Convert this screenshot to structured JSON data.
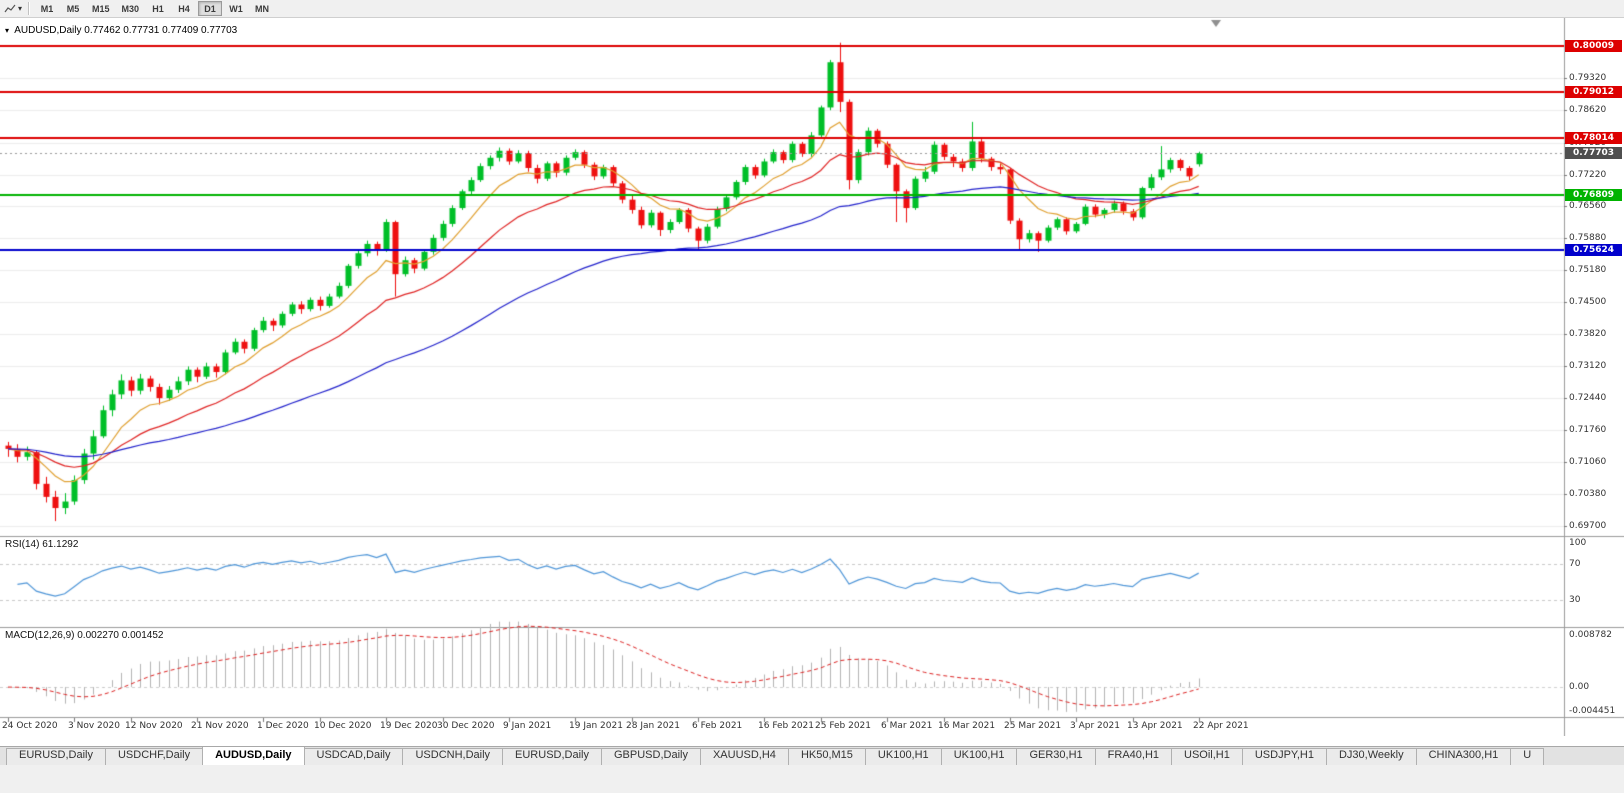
{
  "toolbar": {
    "timeframes": [
      "M1",
      "M5",
      "M15",
      "M30",
      "H1",
      "H4",
      "D1",
      "W1",
      "MN"
    ],
    "active_timeframe": "D1"
  },
  "chart": {
    "title": "AUDUSD,Daily",
    "ohlc_text": "0.77462 0.77731 0.77409 0.77703"
  },
  "chart_data": {
    "type": "candlestick",
    "symbol": "AUDUSD",
    "timeframe": "Daily",
    "bull_color": "#00bf28",
    "bear_color": "#ee1010",
    "ohlc": [
      [
        0.7142,
        0.715,
        0.7118,
        0.7135
      ],
      [
        0.7135,
        0.7145,
        0.7106,
        0.7118
      ],
      [
        0.7118,
        0.714,
        0.711,
        0.7128
      ],
      [
        0.7128,
        0.7132,
        0.7048,
        0.706
      ],
      [
        0.706,
        0.7075,
        0.702,
        0.7032
      ],
      [
        0.7032,
        0.7045,
        0.698,
        0.7008
      ],
      [
        0.7008,
        0.704,
        0.6995,
        0.7022
      ],
      [
        0.7022,
        0.7078,
        0.7015,
        0.7068
      ],
      [
        0.7068,
        0.7135,
        0.706,
        0.7125
      ],
      [
        0.7125,
        0.7175,
        0.7112,
        0.7162
      ],
      [
        0.7162,
        0.7228,
        0.7158,
        0.7218
      ],
      [
        0.7218,
        0.7262,
        0.7205,
        0.7252
      ],
      [
        0.7252,
        0.7295,
        0.7242,
        0.7282
      ],
      [
        0.7282,
        0.729,
        0.7248,
        0.726
      ],
      [
        0.726,
        0.7296,
        0.7252,
        0.7286
      ],
      [
        0.7286,
        0.7292,
        0.7258,
        0.7268
      ],
      [
        0.7268,
        0.7275,
        0.723,
        0.7244
      ],
      [
        0.7244,
        0.727,
        0.7238,
        0.7262
      ],
      [
        0.7262,
        0.729,
        0.7255,
        0.728
      ],
      [
        0.728,
        0.7312,
        0.7272,
        0.7305
      ],
      [
        0.7305,
        0.731,
        0.7278,
        0.729
      ],
      [
        0.729,
        0.732,
        0.7285,
        0.7312
      ],
      [
        0.7312,
        0.7318,
        0.7288,
        0.73
      ],
      [
        0.73,
        0.7348,
        0.7295,
        0.7342
      ],
      [
        0.7342,
        0.7372,
        0.7338,
        0.7365
      ],
      [
        0.7365,
        0.737,
        0.734,
        0.735
      ],
      [
        0.735,
        0.7395,
        0.7345,
        0.739
      ],
      [
        0.739,
        0.7418,
        0.7385,
        0.741
      ],
      [
        0.741,
        0.7415,
        0.7388,
        0.74
      ],
      [
        0.74,
        0.743,
        0.7395,
        0.7425
      ],
      [
        0.7425,
        0.745,
        0.742,
        0.7445
      ],
      [
        0.7445,
        0.7452,
        0.7425,
        0.7435
      ],
      [
        0.7435,
        0.746,
        0.743,
        0.7455
      ],
      [
        0.7455,
        0.7462,
        0.7432,
        0.7442
      ],
      [
        0.7442,
        0.7468,
        0.7438,
        0.7462
      ],
      [
        0.7462,
        0.7492,
        0.7458,
        0.7485
      ],
      [
        0.7485,
        0.7532,
        0.748,
        0.7528
      ],
      [
        0.7528,
        0.756,
        0.7522,
        0.7555
      ],
      [
        0.7555,
        0.7582,
        0.7548,
        0.7575
      ],
      [
        0.7575,
        0.758,
        0.755,
        0.7562
      ],
      [
        0.7562,
        0.7628,
        0.7558,
        0.7622
      ],
      [
        0.7622,
        0.7625,
        0.7462,
        0.751
      ],
      [
        0.751,
        0.7548,
        0.7505,
        0.754
      ],
      [
        0.754,
        0.7545,
        0.7512,
        0.7522
      ],
      [
        0.7522,
        0.7562,
        0.7518,
        0.7558
      ],
      [
        0.7558,
        0.7595,
        0.7552,
        0.7588
      ],
      [
        0.7588,
        0.7625,
        0.7582,
        0.7618
      ],
      [
        0.7618,
        0.7658,
        0.7612,
        0.7652
      ],
      [
        0.7652,
        0.7692,
        0.7648,
        0.7688
      ],
      [
        0.7688,
        0.7718,
        0.7682,
        0.7712
      ],
      [
        0.7712,
        0.7748,
        0.7708,
        0.7742
      ],
      [
        0.7742,
        0.7765,
        0.7735,
        0.776
      ],
      [
        0.776,
        0.7782,
        0.7752,
        0.7775
      ],
      [
        0.7775,
        0.778,
        0.7745,
        0.7752
      ],
      [
        0.7752,
        0.7776,
        0.7748,
        0.777
      ],
      [
        0.777,
        0.7775,
        0.773,
        0.7738
      ],
      [
        0.7738,
        0.7745,
        0.7705,
        0.7715
      ],
      [
        0.7715,
        0.7752,
        0.771,
        0.7748
      ],
      [
        0.7748,
        0.7752,
        0.7718,
        0.7728
      ],
      [
        0.7728,
        0.7765,
        0.7722,
        0.776
      ],
      [
        0.776,
        0.7778,
        0.7755,
        0.7772
      ],
      [
        0.7772,
        0.7776,
        0.7738,
        0.7745
      ],
      [
        0.7745,
        0.775,
        0.7712,
        0.772
      ],
      [
        0.772,
        0.7745,
        0.7715,
        0.774
      ],
      [
        0.774,
        0.7744,
        0.7698,
        0.7705
      ],
      [
        0.7705,
        0.771,
        0.7662,
        0.767
      ],
      [
        0.767,
        0.7678,
        0.764,
        0.7648
      ],
      [
        0.7648,
        0.7655,
        0.7608,
        0.7615
      ],
      [
        0.7615,
        0.7648,
        0.761,
        0.7642
      ],
      [
        0.7642,
        0.7645,
        0.7592,
        0.7605
      ],
      [
        0.7605,
        0.7628,
        0.7598,
        0.7622
      ],
      [
        0.7622,
        0.7652,
        0.7618,
        0.7648
      ],
      [
        0.7648,
        0.7652,
        0.76,
        0.7608
      ],
      [
        0.7608,
        0.7612,
        0.7564,
        0.7582
      ],
      [
        0.7582,
        0.7618,
        0.7576,
        0.7612
      ],
      [
        0.7612,
        0.7655,
        0.7608,
        0.765
      ],
      [
        0.765,
        0.768,
        0.7645,
        0.7675
      ],
      [
        0.7675,
        0.7712,
        0.767,
        0.7708
      ],
      [
        0.7708,
        0.7745,
        0.7702,
        0.774
      ],
      [
        0.774,
        0.7745,
        0.7715,
        0.7722
      ],
      [
        0.7722,
        0.7758,
        0.7718,
        0.7752
      ],
      [
        0.7752,
        0.7778,
        0.7748,
        0.7772
      ],
      [
        0.7772,
        0.7776,
        0.7748,
        0.7755
      ],
      [
        0.7755,
        0.7795,
        0.775,
        0.779
      ],
      [
        0.779,
        0.7794,
        0.7762,
        0.7768
      ],
      [
        0.7768,
        0.7815,
        0.7762,
        0.7808
      ],
      [
        0.7808,
        0.7872,
        0.7802,
        0.7868
      ],
      [
        0.7868,
        0.797,
        0.7862,
        0.7965
      ],
      [
        0.7965,
        0.8007,
        0.7858,
        0.788
      ],
      [
        0.788,
        0.7885,
        0.7692,
        0.7712
      ],
      [
        0.7712,
        0.7778,
        0.7705,
        0.7772
      ],
      [
        0.7772,
        0.7825,
        0.7765,
        0.7818
      ],
      [
        0.7818,
        0.7822,
        0.7782,
        0.779
      ],
      [
        0.779,
        0.7795,
        0.7738,
        0.7745
      ],
      [
        0.7745,
        0.7748,
        0.7622,
        0.7688
      ],
      [
        0.7688,
        0.7692,
        0.7621,
        0.7652
      ],
      [
        0.7652,
        0.772,
        0.7648,
        0.7715
      ],
      [
        0.7715,
        0.774,
        0.7708,
        0.773
      ],
      [
        0.773,
        0.7795,
        0.7725,
        0.7788
      ],
      [
        0.7788,
        0.7792,
        0.7755,
        0.7762
      ],
      [
        0.7762,
        0.7768,
        0.774,
        0.7752
      ],
      [
        0.7752,
        0.7758,
        0.773,
        0.7738
      ],
      [
        0.7738,
        0.7837,
        0.7732,
        0.7795
      ],
      [
        0.7795,
        0.78,
        0.775,
        0.7758
      ],
      [
        0.7758,
        0.7762,
        0.7732,
        0.774
      ],
      [
        0.774,
        0.7748,
        0.7725,
        0.7735
      ],
      [
        0.7735,
        0.7738,
        0.7618,
        0.7625
      ],
      [
        0.7625,
        0.763,
        0.7564,
        0.7585
      ],
      [
        0.7585,
        0.7605,
        0.7578,
        0.7598
      ],
      [
        0.7598,
        0.7602,
        0.7558,
        0.7582
      ],
      [
        0.7582,
        0.7615,
        0.7578,
        0.761
      ],
      [
        0.761,
        0.7632,
        0.7605,
        0.7628
      ],
      [
        0.7628,
        0.7632,
        0.7595,
        0.7602
      ],
      [
        0.7602,
        0.7622,
        0.7598,
        0.7618
      ],
      [
        0.7618,
        0.766,
        0.7615,
        0.7655
      ],
      [
        0.7655,
        0.766,
        0.7632,
        0.7638
      ],
      [
        0.7638,
        0.7652,
        0.763,
        0.7648
      ],
      [
        0.7648,
        0.7668,
        0.7642,
        0.7662
      ],
      [
        0.7662,
        0.7666,
        0.7638,
        0.7645
      ],
      [
        0.7645,
        0.765,
        0.7625,
        0.7632
      ],
      [
        0.7632,
        0.7698,
        0.7628,
        0.7695
      ],
      [
        0.7695,
        0.7725,
        0.769,
        0.7718
      ],
      [
        0.7718,
        0.7785,
        0.7712,
        0.7735
      ],
      [
        0.7735,
        0.776,
        0.7728,
        0.7755
      ],
      [
        0.7755,
        0.7758,
        0.7732,
        0.7738
      ],
      [
        0.7738,
        0.7742,
        0.7712,
        0.772
      ],
      [
        0.7746,
        0.7773,
        0.7741,
        0.777
      ]
    ],
    "x_labels": [
      "24 Oct 2020",
      "3 Nov 2020",
      "12 Nov 2020",
      "21 Nov 2020",
      "1 Dec 2020",
      "10 Dec 2020",
      "19 Dec 2020",
      "30 Dec 2020",
      "9 Jan 2021",
      "19 Jan 2021",
      "28 Jan 2021",
      "6 Feb 2021",
      "16 Feb 2021",
      "25 Feb 2021",
      "6 Mar 2021",
      "16 Mar 2021",
      "25 Mar 2021",
      "3 Apr 2021",
      "13 Apr 2021",
      "22 Apr 2021"
    ],
    "y_ticks": [
      "0.79320",
      "0.78620",
      "0.77920",
      "0.77220",
      "0.76560",
      "0.75880",
      "0.75180",
      "0.74500",
      "0.73820",
      "0.73120",
      "0.72440",
      "0.71760",
      "0.71060",
      "0.70380",
      "0.69700"
    ],
    "hlines": [
      {
        "label": "0.80009",
        "value": 0.80009,
        "color": "#dd0000"
      },
      {
        "label": "0.79012",
        "value": 0.79012,
        "color": "#dd0000"
      },
      {
        "label": "0.78014",
        "value": 0.78014,
        "color": "#dd0000"
      },
      {
        "label": "0.76809",
        "value": 0.76809,
        "color": "#00b300"
      },
      {
        "label": "0.75624",
        "value": 0.75624,
        "color": "#0000cc"
      }
    ],
    "current_price": {
      "label": "0.77703",
      "value": 0.77703,
      "color": "#4f4f4f"
    },
    "moving_averages": [
      {
        "period": 8,
        "method": "ema",
        "color": "#e0a030"
      },
      {
        "period": 20,
        "method": "ema",
        "color": "#e02525"
      },
      {
        "period": 55,
        "method": "ema",
        "color": "#2222cc"
      }
    ],
    "rsi": {
      "label": "RSI(14)",
      "value": "61.1292",
      "period": 14,
      "levels": [
        "100",
        "70",
        "30"
      ],
      "line_color": "#4f96d8"
    },
    "macd": {
      "label": "MACD(12,26,9)",
      "values": "0.002270 0.001452",
      "scale_labels": [
        "0.008782",
        "0.00",
        "-0.004451"
      ],
      "histogram_color": "#b4b4b4",
      "signal_color": "#dd2222"
    }
  },
  "tabs": {
    "items": [
      {
        "label": "EURUSD,Daily",
        "active": false
      },
      {
        "label": "USDCHF,Daily",
        "active": false
      },
      {
        "label": "AUDUSD,Daily",
        "active": true
      },
      {
        "label": "USDCAD,Daily",
        "active": false
      },
      {
        "label": "USDCNH,Daily",
        "active": false
      },
      {
        "label": "EURUSD,Daily",
        "active": false
      },
      {
        "label": "GBPUSD,Daily",
        "active": false
      },
      {
        "label": "XAUUSD,H4",
        "active": false
      },
      {
        "label": "HK50,M15",
        "active": false
      },
      {
        "label": "UK100,H1",
        "active": false
      },
      {
        "label": "UK100,H1",
        "active": false
      },
      {
        "label": "GER30,H1",
        "active": false
      },
      {
        "label": "FRA40,H1",
        "active": false
      },
      {
        "label": "USOil,H1",
        "active": false
      },
      {
        "label": "USDJPY,H1",
        "active": false
      },
      {
        "label": "DJ30,Weekly",
        "active": false
      },
      {
        "label": "CHINA300,H1",
        "active": false
      },
      {
        "label": "U",
        "active": false
      }
    ]
  }
}
